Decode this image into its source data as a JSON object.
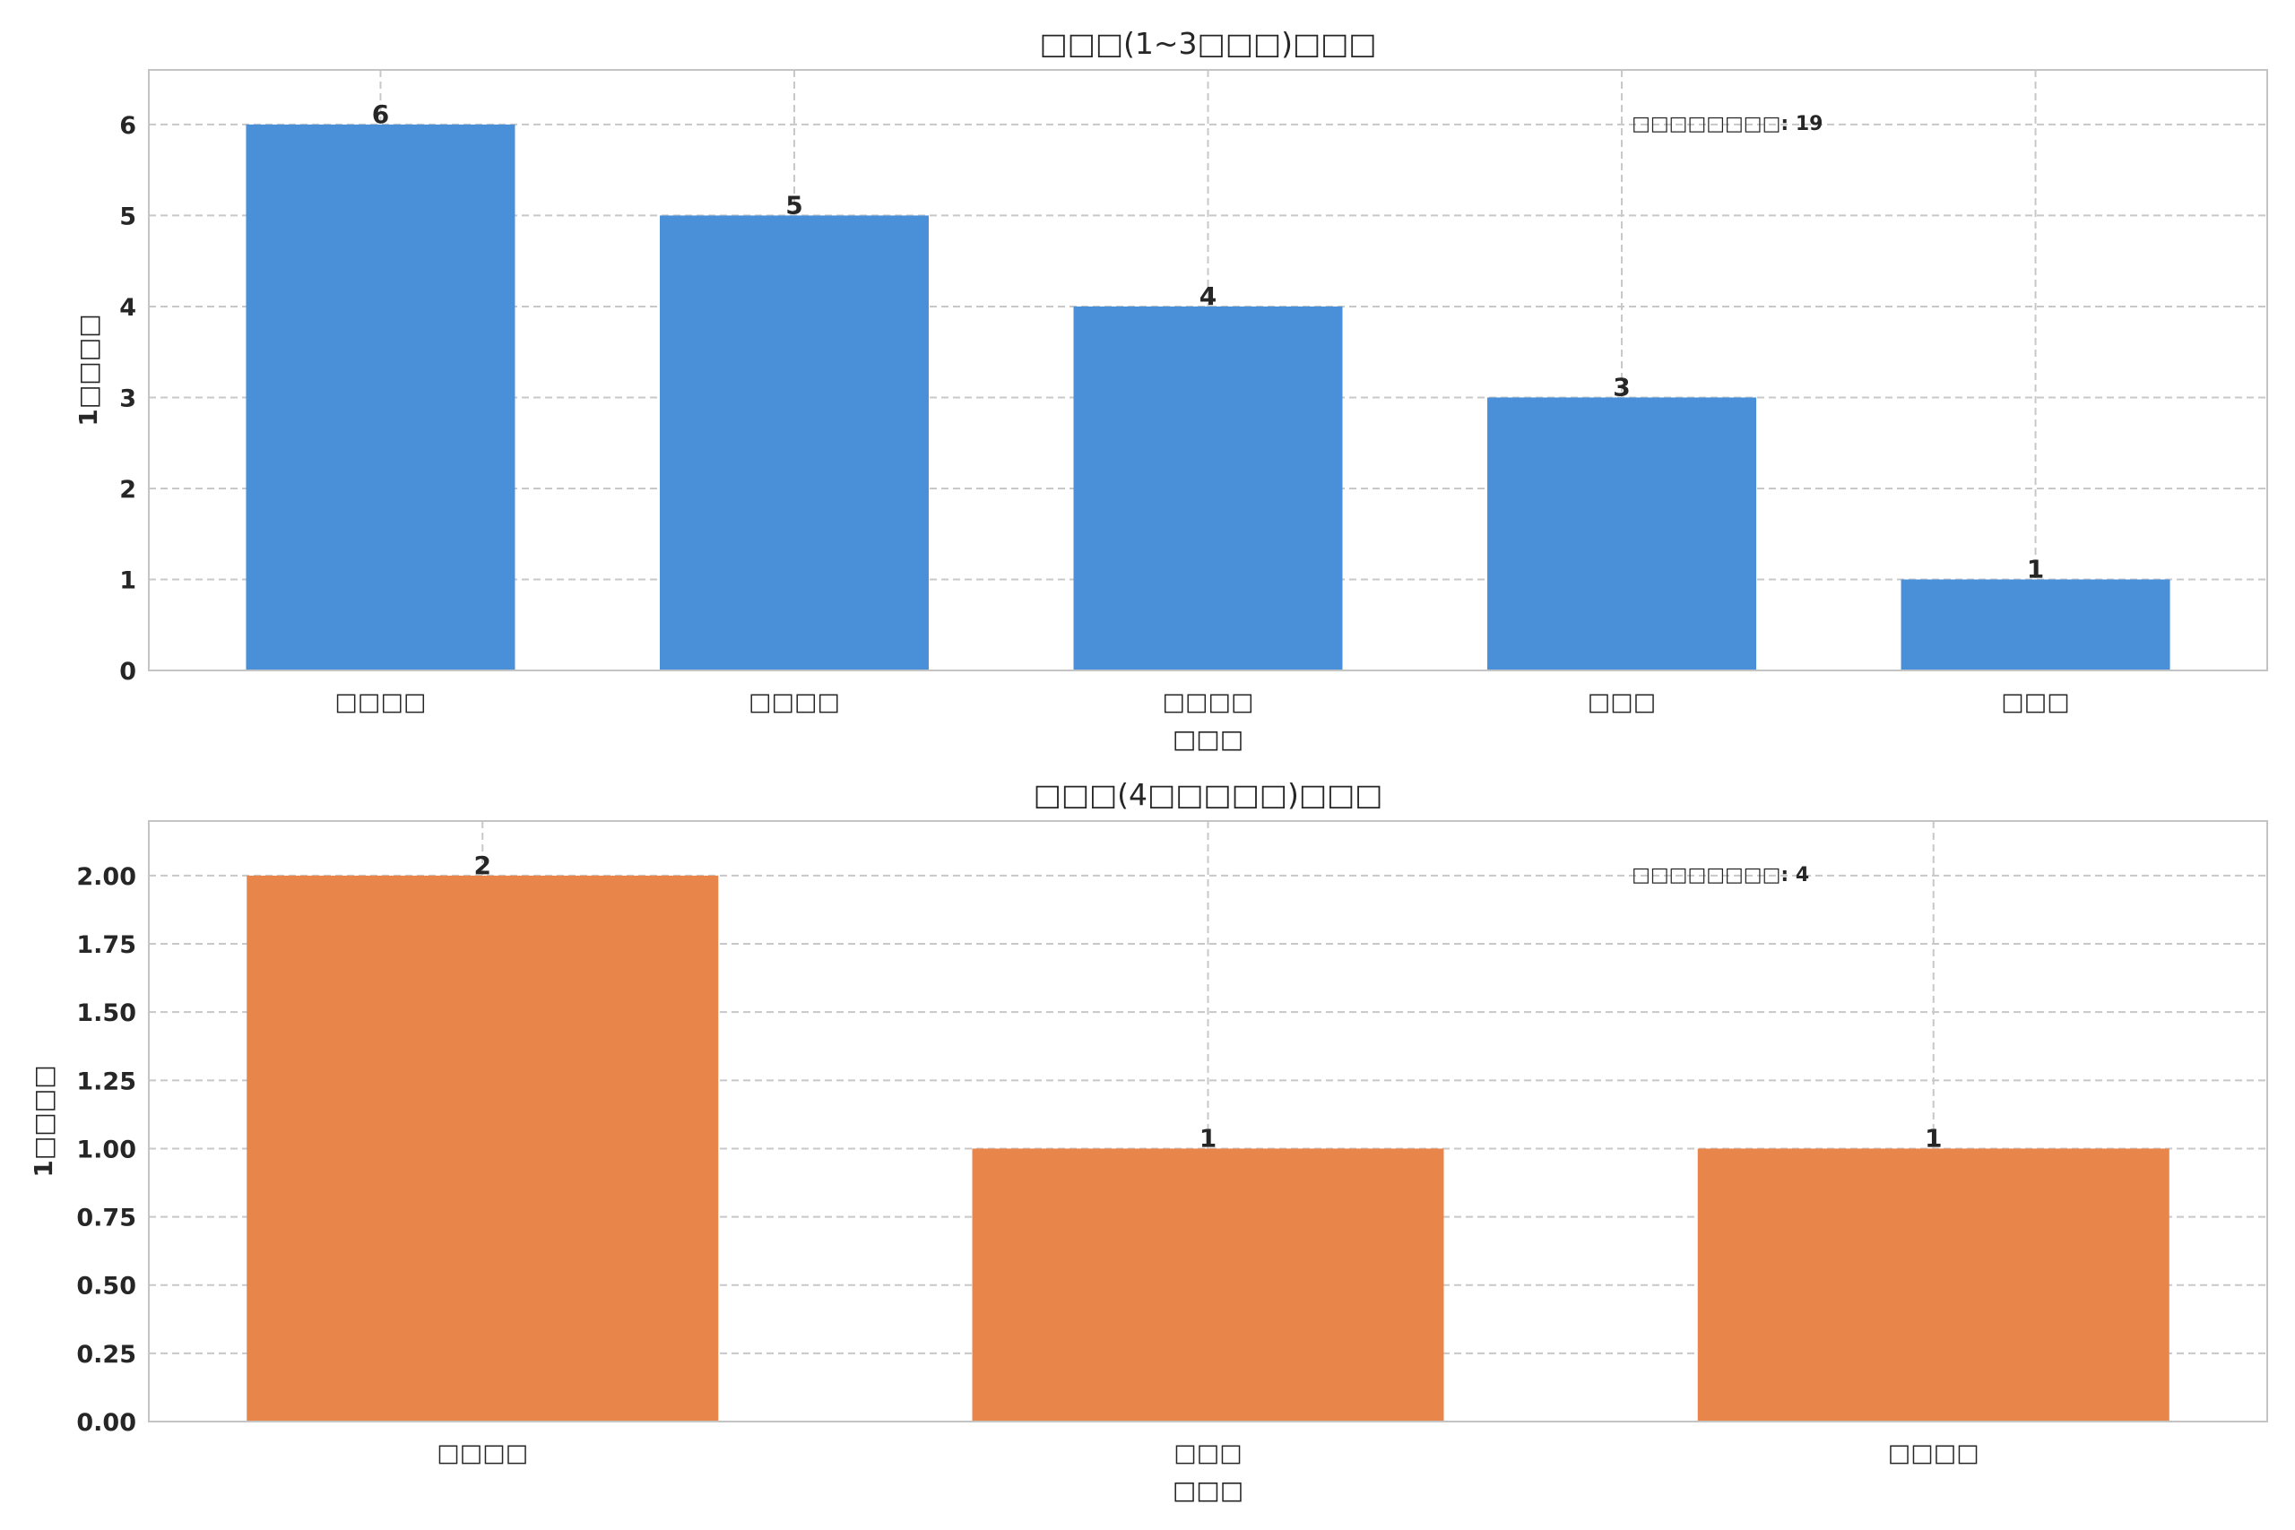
{
  "chart_data": [
    {
      "type": "bar",
      "title": "□□□(1~3□□□)□□□",
      "categories": [
        "□□□□",
        "□□□□",
        "□□□□",
        "□□□",
        "□□□"
      ],
      "values": [
        6,
        5,
        4,
        3,
        1
      ],
      "xlabel": "□□□",
      "ylabel": "1□□□□",
      "ylim": [
        0,
        6.6
      ],
      "yticks": [
        "0",
        "1",
        "2",
        "3",
        "4",
        "5",
        "6"
      ],
      "ytick_values": [
        0,
        1,
        2,
        3,
        4,
        5,
        6
      ],
      "bar_labels": [
        "6",
        "5",
        "4",
        "3",
        "1"
      ],
      "annotation": "□□□□□□□□: 19",
      "color": "#4a90d9",
      "grid": true,
      "legend": "none"
    },
    {
      "type": "bar",
      "title": "□□□(4□□□□□)□□□",
      "categories": [
        "□□□□",
        "□□□",
        "□□□□"
      ],
      "values": [
        2,
        1,
        1
      ],
      "xlabel": "□□□",
      "ylabel": "1□□□□",
      "ylim": [
        0,
        2.2
      ],
      "yticks": [
        "0.00",
        "0.25",
        "0.50",
        "0.75",
        "1.00",
        "1.25",
        "1.50",
        "1.75",
        "2.00"
      ],
      "ytick_values": [
        0,
        0.25,
        0.5,
        0.75,
        1.0,
        1.25,
        1.5,
        1.75,
        2.0
      ],
      "bar_labels": [
        "2",
        "1",
        "1"
      ],
      "annotation": "□□□□□□□□: 4",
      "color": "#e8854b",
      "grid": true,
      "legend": "none"
    }
  ]
}
